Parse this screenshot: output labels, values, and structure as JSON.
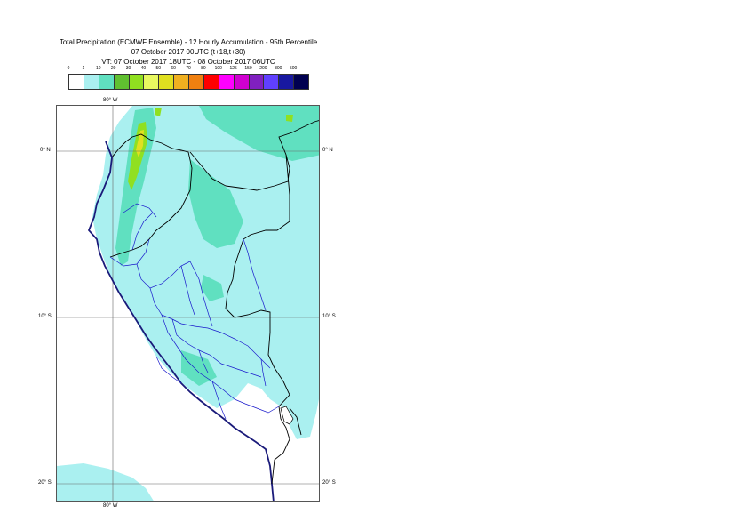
{
  "title": {
    "line1": "Total Precipitation (ECMWF Ensemble) - 12 Hourly Accumulation - 95th Percentile",
    "line2": "07 October 2017 00UTC (t+18,t+30)",
    "line3": "VT: 07 October 2017 18UTC - 08 October 2017 06UTC"
  },
  "legend": {
    "thresholds": [
      "0",
      "1",
      "10",
      "20",
      "30",
      "40",
      "50",
      "60",
      "70",
      "80",
      "100",
      "125",
      "150",
      "200",
      "300",
      "500"
    ],
    "colors": [
      "#ffffff",
      "#aaf0f0",
      "#60e0c0",
      "#60c030",
      "#90e020",
      "#e8f860",
      "#e0e020",
      "#f0b020",
      "#f08010",
      "#ff0000",
      "#ff00ff",
      "#d000d0",
      "#8020c0",
      "#6040ff",
      "#1818a0",
      "#000050"
    ]
  },
  "axes": {
    "lon_top": "80° W",
    "lon_bottom": "80° W",
    "lat_left": [
      "0° N",
      "10° S",
      "20° S"
    ],
    "lat_right": [
      "0° N",
      "10° S",
      "20° S"
    ]
  },
  "map_colors": {
    "light": "#aaf0f0",
    "medium": "#60e0c0",
    "heavy": "#90e020",
    "yellow": "#e0e020",
    "coast": "#1a1a7a",
    "border": "#000000",
    "province": "#1a1acc",
    "grid": "#666666"
  }
}
